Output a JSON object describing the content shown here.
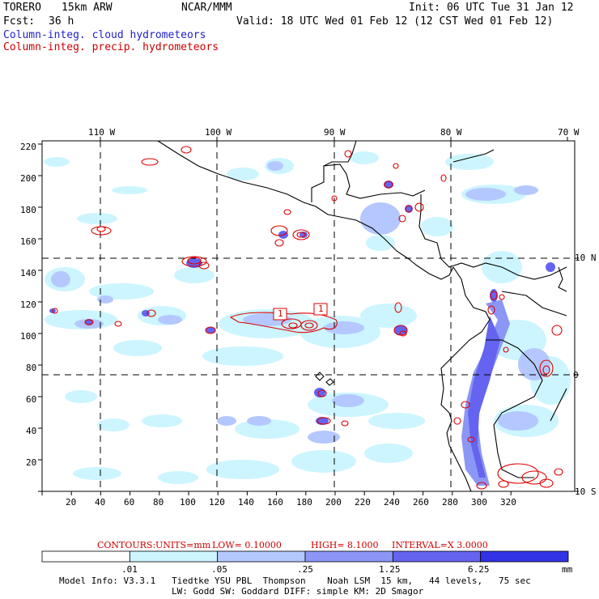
{
  "header": {
    "model": "TORERO",
    "resolution": "15km ARW",
    "center": "NCAR/MMM",
    "init": "Init: 06 UTC Tue 31 Jan 12",
    "fcst_label": "Fcst:",
    "fcst_hours": "36 h",
    "valid": "Valid: 18 UTC Wed 01 Feb 12 (12 CST Wed 01 Feb 12)",
    "field1": "Column-integ. cloud hydrometeors",
    "field2": "Column-integ. precip. hydrometeors"
  },
  "map": {
    "top_lon_labels": [
      "110 W",
      "100 W",
      "90 W",
      "80 W",
      "70 W"
    ],
    "right_lat_labels": [
      "10 N",
      "0",
      "10 S"
    ],
    "left_grid_labels": [
      "220",
      "200",
      "180",
      "160",
      "140",
      "120",
      "100",
      "80",
      "60",
      "40",
      "20"
    ],
    "bottom_grid_labels": [
      "20",
      "40",
      "60",
      "80",
      "100",
      "120",
      "140",
      "160",
      "180",
      "200",
      "220",
      "240",
      "260",
      "280",
      "300",
      "320"
    ],
    "contour_markers": [
      "1",
      "1"
    ]
  },
  "contour_info": {
    "label": "CONTOURS:",
    "units": "UNITS=mm",
    "low": "LOW= 0.10000",
    "high": "HIGH= 8.1000",
    "interval": "INTERVAL=X 3.0000"
  },
  "colorbar": {
    "ticks": [
      ".01",
      ".05",
      ".25",
      "1.25",
      "6.25"
    ],
    "unit": "mm",
    "colors": [
      "#ffffff",
      "#ccf5ff",
      "#b4c8ff",
      "#8c96f5",
      "#6464f0",
      "#3232e6"
    ]
  },
  "footer": {
    "line1": "Model Info: V3.3.1   Tiedtke YSU PBL  Thompson    Noah LSM  15 km,   44 levels,   75 sec",
    "line2": "LW: Godd SW: Goddard DIFF: simple KM: 2D Smagor"
  }
}
